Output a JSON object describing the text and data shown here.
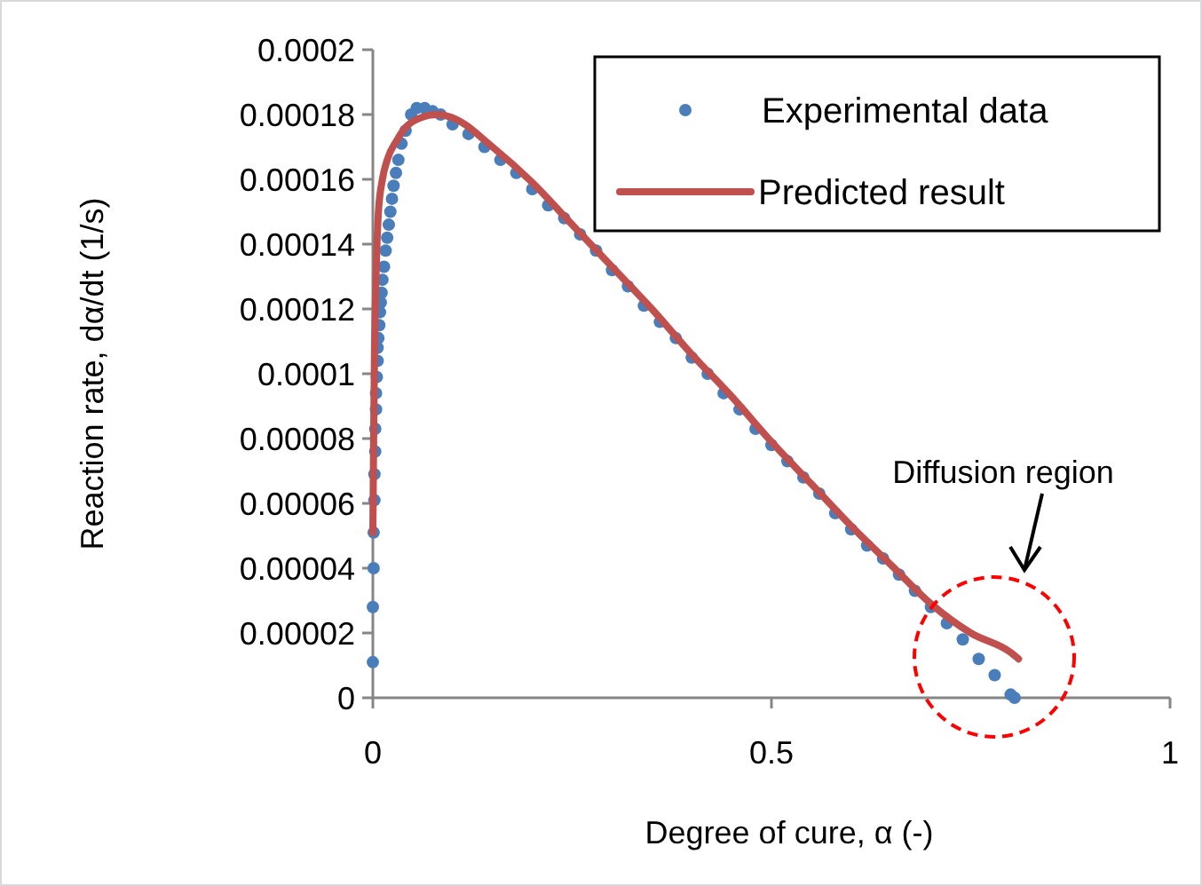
{
  "chart_data": {
    "type": "scatter",
    "xlabel": "Degree of cure, α (-)",
    "ylabel": "Reaction rate, dα/dt (1/s)",
    "xlim": [
      0,
      1
    ],
    "xticks": [
      0,
      0.5,
      1
    ],
    "ylim": [
      0,
      0.0002
    ],
    "yticks": [
      0,
      {
        "value": 2e-05,
        "label": "0.00002"
      },
      {
        "value": 4e-05,
        "label": "0.00004"
      },
      {
        "value": 6e-05,
        "label": "0.00006"
      },
      {
        "value": 8e-05,
        "label": "0.00008"
      },
      0.0001,
      0.00012,
      0.00014,
      0.00016,
      0.00018,
      0.0002
    ],
    "grid": false,
    "legend": "top right",
    "annotations": [
      "Diffusion region"
    ],
    "series": [
      {
        "name": "Experimental data",
        "marker": "circle",
        "color": "#4a7ebb",
        "x": [
          0,
          0,
          0.001,
          0.001,
          0.002,
          0.002,
          0.003,
          0.003,
          0.004,
          0.004,
          0.005,
          0.006,
          0.006,
          0.007,
          0.008,
          0.009,
          0.01,
          0.011,
          0.012,
          0.014,
          0.016,
          0.018,
          0.02,
          0.022,
          0.024,
          0.026,
          0.029,
          0.032,
          0.036,
          0.041,
          0.048,
          0.055,
          0.065,
          0.075,
          0.085,
          0.1,
          0.12,
          0.14,
          0.16,
          0.18,
          0.2,
          0.22,
          0.24,
          0.26,
          0.28,
          0.3,
          0.32,
          0.34,
          0.36,
          0.38,
          0.4,
          0.42,
          0.44,
          0.46,
          0.48,
          0.5,
          0.52,
          0.54,
          0.56,
          0.58,
          0.6,
          0.62,
          0.64,
          0.66,
          0.68,
          0.7,
          0.72,
          0.74,
          0.76,
          0.78,
          0.8,
          0.805
        ],
        "values": [
          1.1e-05,
          2.8e-05,
          4e-05,
          5.1e-05,
          6.1e-05,
          6.9e-05,
          7.6e-05,
          8.3e-05,
          8.9e-05,
          9.4e-05,
          9.9e-05,
          0.000104,
          0.000108,
          0.000111,
          0.000115,
          0.000119,
          0.000122,
          0.000125,
          0.000129,
          0.000133,
          0.000138,
          0.000142,
          0.000146,
          0.00015,
          0.000154,
          0.000158,
          0.000162,
          0.000166,
          0.000171,
          0.000175,
          0.00018,
          0.000182,
          0.000182,
          0.000181,
          0.00018,
          0.000177,
          0.000174,
          0.00017,
          0.000166,
          0.000162,
          0.000157,
          0.000152,
          0.000148,
          0.000143,
          0.000138,
          0.000132,
          0.000127,
          0.000121,
          0.000116,
          0.000111,
          0.000105,
          0.0001,
          9.4e-05,
          8.9e-05,
          8.3e-05,
          7.8e-05,
          7.3e-05,
          6.8e-05,
          6.3e-05,
          5.7e-05,
          5.2e-05,
          4.7e-05,
          4.3e-05,
          3.8e-05,
          3.3e-05,
          2.8e-05,
          2.3e-05,
          1.8e-05,
          1.2e-05,
          7e-06,
          1e-06,
          0
        ]
      },
      {
        "name": "Predicted result",
        "type": "line",
        "marker": "none",
        "line_style": "solid",
        "color": "#c0504d",
        "x": [
          0,
          0.001,
          0.002,
          0.004,
          0.007,
          0.012,
          0.018,
          0.03,
          0.041,
          0.06,
          0.08,
          0.1,
          0.15,
          0.2,
          0.25,
          0.3,
          0.35,
          0.4,
          0.45,
          0.5,
          0.55,
          0.6,
          0.65,
          0.7,
          0.75,
          0.8,
          0.81
        ],
        "values": [
          5.1e-05,
          8e-05,
          0.000105,
          0.00013,
          0.00015,
          0.00016,
          0.000166,
          0.000172,
          0.000176,
          0.000179,
          0.00018,
          0.000179,
          0.00017,
          0.000159,
          0.000146,
          0.000133,
          0.00012,
          0.000106,
          9.3e-05,
          7.9e-05,
          6.6e-05,
          5.3e-05,
          4.1e-05,
          2.9e-05,
          2e-05,
          1.4e-05,
          1.2e-05
        ]
      }
    ]
  }
}
